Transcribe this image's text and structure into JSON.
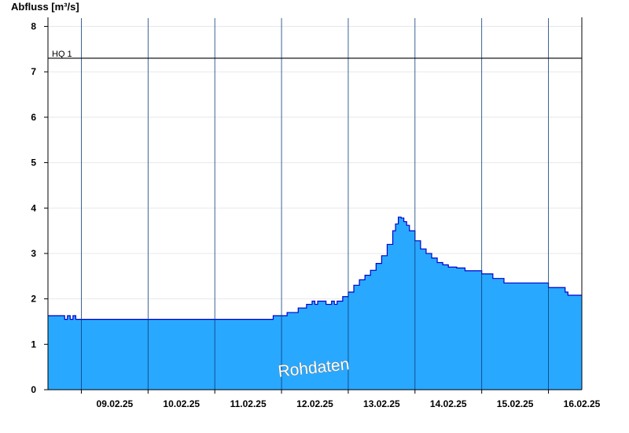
{
  "chart_data": {
    "type": "area",
    "ylabel": "Abfluss [m³/s]",
    "ylim": [
      0,
      8.2
    ],
    "yticks": [
      "0",
      "1",
      "2",
      "3",
      "4",
      "5",
      "6",
      "7",
      "8"
    ],
    "x_start": "08.02.25 12:00",
    "x_end": "16.02.25 12:00",
    "xticks": [
      "09.02.25",
      "10.02.25",
      "11.02.25",
      "12.02.25",
      "13.02.25",
      "14.02.25",
      "15.02.25",
      "16.02.25"
    ],
    "grid": true,
    "colors": {
      "fill": "#29a8ff",
      "line": "#0000cc",
      "grid": "#e8e8e8",
      "day_separator": "#0b3c78"
    },
    "reference_line": {
      "label": "HQ 1",
      "value": 7.3
    },
    "watermark": "Rohdaten",
    "series": [
      {
        "x": [
          "08.02.25 12:00",
          "08.02.25 17:00",
          "08.02.25 18:00",
          "08.02.25 19:00",
          "08.02.25 20:00",
          "08.02.25 21:00",
          "08.02.25 22:00",
          "08.02.25 23:00",
          "09.02.25 00:00",
          "10.02.25 00:00",
          "11.02.25 00:00",
          "11.02.25 18:00",
          "11.02.25 21:00",
          "12.02.25 02:00",
          "12.02.25 06:00",
          "12.02.25 09:00",
          "12.02.25 11:00",
          "12.02.25 12:00",
          "12.02.25 13:00",
          "12.02.25 16:00",
          "12.02.25 18:00",
          "12.02.25 19:00",
          "12.02.25 20:00",
          "12.02.25 22:00",
          "13.02.25 00:00",
          "13.02.25 02:00",
          "13.02.25 04:00",
          "13.02.25 06:00",
          "13.02.25 08:00",
          "13.02.25 10:00",
          "13.02.25 12:00",
          "13.02.25 14:00",
          "13.02.25 16:00",
          "13.02.25 17:00",
          "13.02.25 18:00",
          "13.02.25 19:00",
          "13.02.25 20:00",
          "13.02.25 21:00",
          "13.02.25 22:00",
          "14.02.25 00:00",
          "14.02.25 02:00",
          "14.02.25 04:00",
          "14.02.25 06:00",
          "14.02.25 08:00",
          "14.02.25 10:00",
          "14.02.25 12:00",
          "14.02.25 15:00",
          "14.02.25 18:00",
          "15.02.25 00:00",
          "15.02.25 04:00",
          "15.02.25 08:00",
          "15.02.25 18:00",
          "16.02.25 00:00",
          "16.02.25 06:00",
          "16.02.25 07:00",
          "16.02.25 12:00"
        ],
        "y": [
          1.63,
          1.63,
          1.55,
          1.63,
          1.55,
          1.63,
          1.55,
          1.55,
          1.55,
          1.55,
          1.55,
          1.55,
          1.63,
          1.7,
          1.8,
          1.88,
          1.95,
          1.88,
          1.95,
          1.88,
          1.95,
          1.88,
          1.95,
          2.05,
          2.15,
          2.3,
          2.42,
          2.52,
          2.63,
          2.78,
          2.95,
          3.2,
          3.5,
          3.65,
          3.8,
          3.78,
          3.7,
          3.62,
          3.5,
          3.28,
          3.1,
          3.0,
          2.9,
          2.8,
          2.75,
          2.7,
          2.68,
          2.62,
          2.55,
          2.45,
          2.35,
          2.35,
          2.25,
          2.15,
          2.08,
          2.08
        ]
      }
    ]
  }
}
